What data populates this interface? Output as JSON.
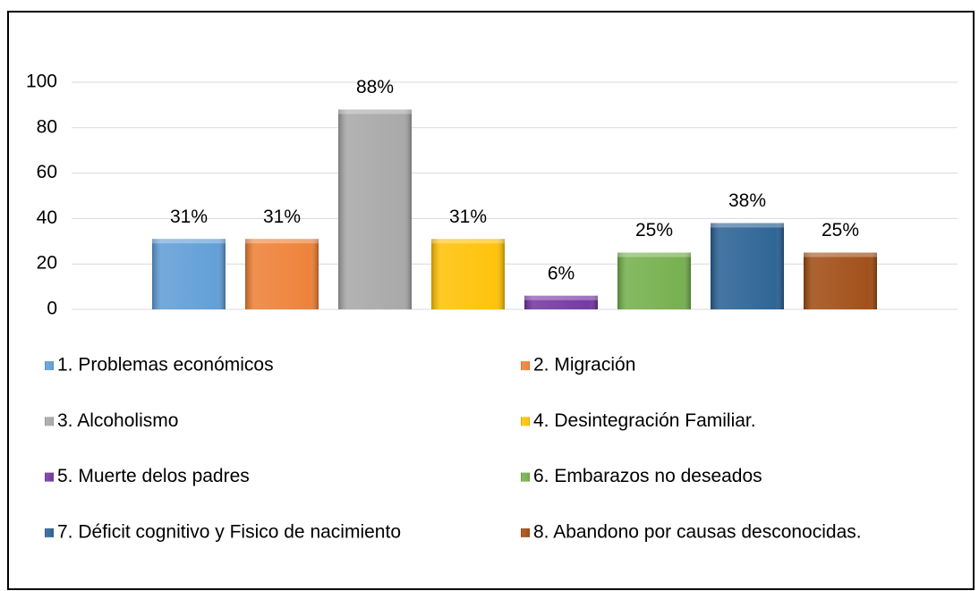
{
  "chart_data": {
    "type": "bar",
    "categories": [
      null
    ],
    "series": [
      {
        "name": "1. Problemas económicos",
        "color": "#5b9bd5",
        "values": [
          31
        ],
        "value_labels": [
          "31%"
        ]
      },
      {
        "name": "2. Migración",
        "color": "#ed7d31",
        "values": [
          31
        ],
        "value_labels": [
          "31%"
        ]
      },
      {
        "name": "3. Alcoholismo",
        "color": "#a5a5a5",
        "values": [
          88
        ],
        "value_labels": [
          "88%"
        ]
      },
      {
        "name": "4. Desintegración Familiar.",
        "color": "#ffc000",
        "values": [
          31
        ],
        "value_labels": [
          "31%"
        ]
      },
      {
        "name": "5. Muerte delos padres",
        "color": "#7030a0",
        "values": [
          6
        ],
        "value_labels": [
          "6%"
        ]
      },
      {
        "name": "6. Embarazos no deseados",
        "color": "#70ad47",
        "values": [
          25
        ],
        "value_labels": [
          "25%"
        ]
      },
      {
        "name": "7. Déficit cognitivo y Fisico de nacimiento",
        "color": "#255e91",
        "values": [
          38
        ],
        "value_labels": [
          "38%"
        ]
      },
      {
        "name": "8. Abandono por causas desconocidas.",
        "color": "#9e480e",
        "values": [
          25
        ],
        "value_labels": [
          "25%"
        ]
      }
    ],
    "ylim": [
      0,
      100
    ],
    "yticks": [
      0,
      20,
      40,
      60,
      80,
      100
    ],
    "grid": true,
    "legend": "bottom"
  }
}
